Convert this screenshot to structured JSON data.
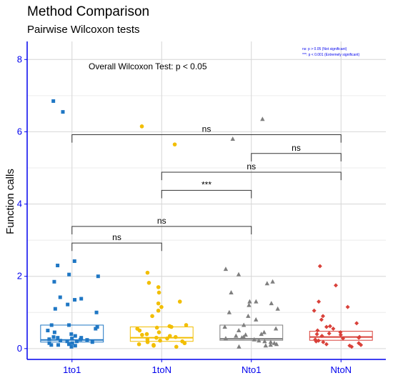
{
  "chart_data": {
    "type": "box",
    "title": "Method Comparison",
    "subtitle": "Pairwise Wilcoxon tests",
    "xlabel": "",
    "ylabel": "Function calls",
    "ylim": [
      -0.3,
      8.5
    ],
    "yticks": [
      "0",
      "2",
      "4",
      "6",
      "8"
    ],
    "grid": true,
    "annotation": "Overall Wilcoxon Test: p < 0.05",
    "legend_notes": [
      "ns: p > 0.05 (Not significant)",
      "***: p < 0.001 (Extremely significant)"
    ],
    "categories": [
      "1to1",
      "1toN",
      "Nto1",
      "NtoN"
    ],
    "series": [
      {
        "category": "1to1",
        "color": "#1f77c4",
        "shape": "square",
        "box": {
          "q1": 0.18,
          "median": 0.24,
          "q3": 0.65
        },
        "points": [
          0.05,
          0.08,
          0.1,
          0.1,
          0.12,
          0.15,
          0.15,
          0.18,
          0.2,
          0.2,
          0.22,
          0.24,
          0.25,
          0.26,
          0.28,
          0.3,
          0.3,
          0.32,
          0.35,
          0.4,
          0.45,
          0.5,
          0.55,
          0.6,
          0.65,
          0.65,
          1.0,
          1.1,
          1.22,
          1.35,
          1.38,
          1.42,
          1.85,
          2.0,
          2.05,
          2.3,
          2.42,
          6.55,
          6.85
        ]
      },
      {
        "category": "1toN",
        "color": "#f2be00",
        "shape": "circle",
        "box": {
          "q1": 0.2,
          "median": 0.3,
          "q3": 0.6
        },
        "points": [
          0.05,
          0.08,
          0.1,
          0.12,
          0.15,
          0.18,
          0.2,
          0.22,
          0.25,
          0.28,
          0.3,
          0.32,
          0.35,
          0.38,
          0.4,
          0.45,
          0.5,
          0.55,
          0.58,
          0.6,
          0.62,
          0.65,
          0.9,
          1.05,
          1.15,
          1.25,
          1.3,
          1.55,
          1.7,
          1.82,
          2.1,
          5.65,
          6.15
        ]
      },
      {
        "category": "Nto1",
        "color": "#7f7f7f",
        "shape": "triangle",
        "box": {
          "q1": 0.23,
          "median": 0.27,
          "q3": 0.65
        },
        "points": [
          0.05,
          0.08,
          0.1,
          0.12,
          0.15,
          0.18,
          0.2,
          0.22,
          0.25,
          0.28,
          0.3,
          0.32,
          0.35,
          0.38,
          0.4,
          0.45,
          0.5,
          0.55,
          0.6,
          0.65,
          0.8,
          0.9,
          1.0,
          1.1,
          1.2,
          1.25,
          1.3,
          1.3,
          1.55,
          1.8,
          1.85,
          2.05,
          2.2,
          5.8,
          6.35
        ]
      },
      {
        "category": "NtoN",
        "color": "#d9413a",
        "shape": "diamond",
        "box": {
          "q1": 0.23,
          "median": 0.32,
          "q3": 0.48
        },
        "points": [
          0.05,
          0.08,
          0.1,
          0.12,
          0.15,
          0.18,
          0.2,
          0.22,
          0.25,
          0.28,
          0.3,
          0.32,
          0.35,
          0.38,
          0.4,
          0.42,
          0.45,
          0.5,
          0.55,
          0.6,
          0.62,
          0.7,
          0.8,
          0.9,
          1.05,
          1.15,
          1.3,
          1.75,
          2.28
        ]
      }
    ],
    "comparisons": [
      {
        "from": "1to1",
        "to": "1toN",
        "label": "ns",
        "y": 2.92
      },
      {
        "from": "1to1",
        "to": "Nto1",
        "label": "ns",
        "y": 3.38
      },
      {
        "from": "1toN",
        "to": "Nto1",
        "label": "***",
        "y": 4.38
      },
      {
        "from": "1toN",
        "to": "NtoN",
        "label": "ns",
        "y": 4.88
      },
      {
        "from": "Nto1",
        "to": "NtoN",
        "label": "ns",
        "y": 5.4
      },
      {
        "from": "1to1",
        "to": "NtoN",
        "label": "ns",
        "y": 5.92
      }
    ]
  }
}
